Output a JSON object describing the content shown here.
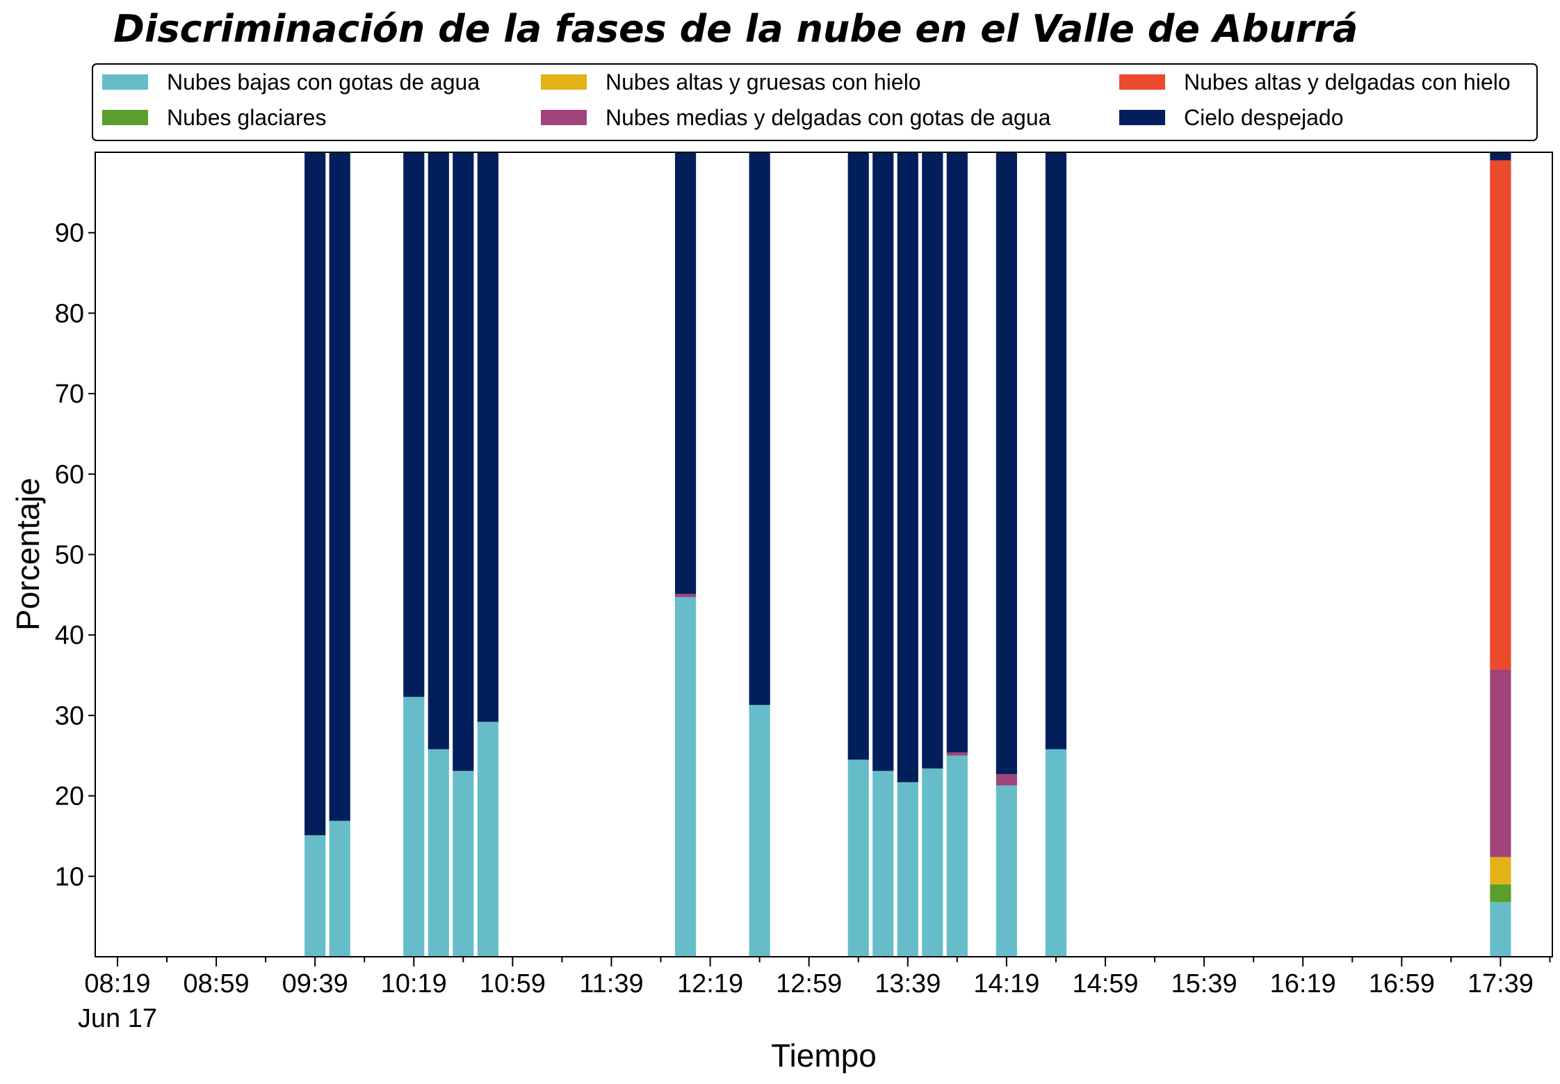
{
  "chart_data": {
    "type": "bar",
    "stacked": true,
    "title": "Discriminación de la fases de la nube en el Valle de Aburrá",
    "xlabel": "Tiempo",
    "ylabel": "Porcentaje",
    "ylim": [
      0,
      100
    ],
    "y_ticks": [
      "10",
      "20",
      "30",
      "40",
      "50",
      "60",
      "70",
      "80",
      "90"
    ],
    "x_tick_labels": [
      "08:19",
      "08:59",
      "09:39",
      "10:19",
      "10:59",
      "11:39",
      "12:19",
      "12:59",
      "13:39",
      "14:19",
      "14:59",
      "15:39",
      "16:19",
      "16:59",
      "17:39"
    ],
    "x_date_label": "Jun 17",
    "x_range": [
      "08:10",
      "18:00"
    ],
    "bar_width_minutes": 8.5,
    "grid": false,
    "legend_position": "top",
    "x": [
      "09:39",
      "09:49",
      "10:19",
      "10:29",
      "10:39",
      "10:49",
      "12:09",
      "12:39",
      "13:19",
      "13:29",
      "13:39",
      "13:49",
      "13:59",
      "14:19",
      "14:39",
      "17:39"
    ],
    "series": [
      {
        "name": "Nubes bajas con gotas de agua",
        "color": "#66bdc9",
        "values": [
          15.1,
          16.9,
          32.3,
          25.8,
          23.1,
          29.2,
          44.7,
          31.3,
          24.5,
          23.1,
          21.7,
          23.4,
          25.0,
          21.3,
          25.8,
          6.8
        ]
      },
      {
        "name": "Nubes glaciares",
        "color": "#5a9e2b",
        "values": [
          0,
          0,
          0,
          0,
          0,
          0,
          0,
          0,
          0,
          0,
          0,
          0,
          0,
          0,
          0,
          2.2
        ]
      },
      {
        "name": "Nubes altas y gruesas con hielo",
        "color": "#e2b317",
        "values": [
          0,
          0,
          0,
          0,
          0,
          0,
          0,
          0,
          0,
          0,
          0,
          0,
          0,
          0,
          0,
          3.4
        ]
      },
      {
        "name": "Nubes medias y delgadas con gotas de agua",
        "color": "#a0437a",
        "values": [
          0,
          0,
          0,
          0,
          0,
          0,
          0.4,
          0,
          0,
          0,
          0,
          0,
          0.4,
          1.4,
          0,
          23.3
        ]
      },
      {
        "name": "Nubes altas y delgadas con hielo",
        "color": "#eb4a2c",
        "values": [
          0,
          0,
          0,
          0,
          0,
          0,
          0,
          0,
          0,
          0,
          0,
          0,
          0,
          0,
          0,
          63.3
        ]
      },
      {
        "name": "Cielo despejado",
        "color": "#021f5c",
        "values": [
          84.9,
          83.1,
          67.7,
          74.2,
          76.9,
          70.8,
          54.9,
          68.7,
          75.5,
          76.9,
          78.3,
          76.6,
          74.6,
          77.3,
          74.2,
          1.0
        ]
      }
    ]
  }
}
